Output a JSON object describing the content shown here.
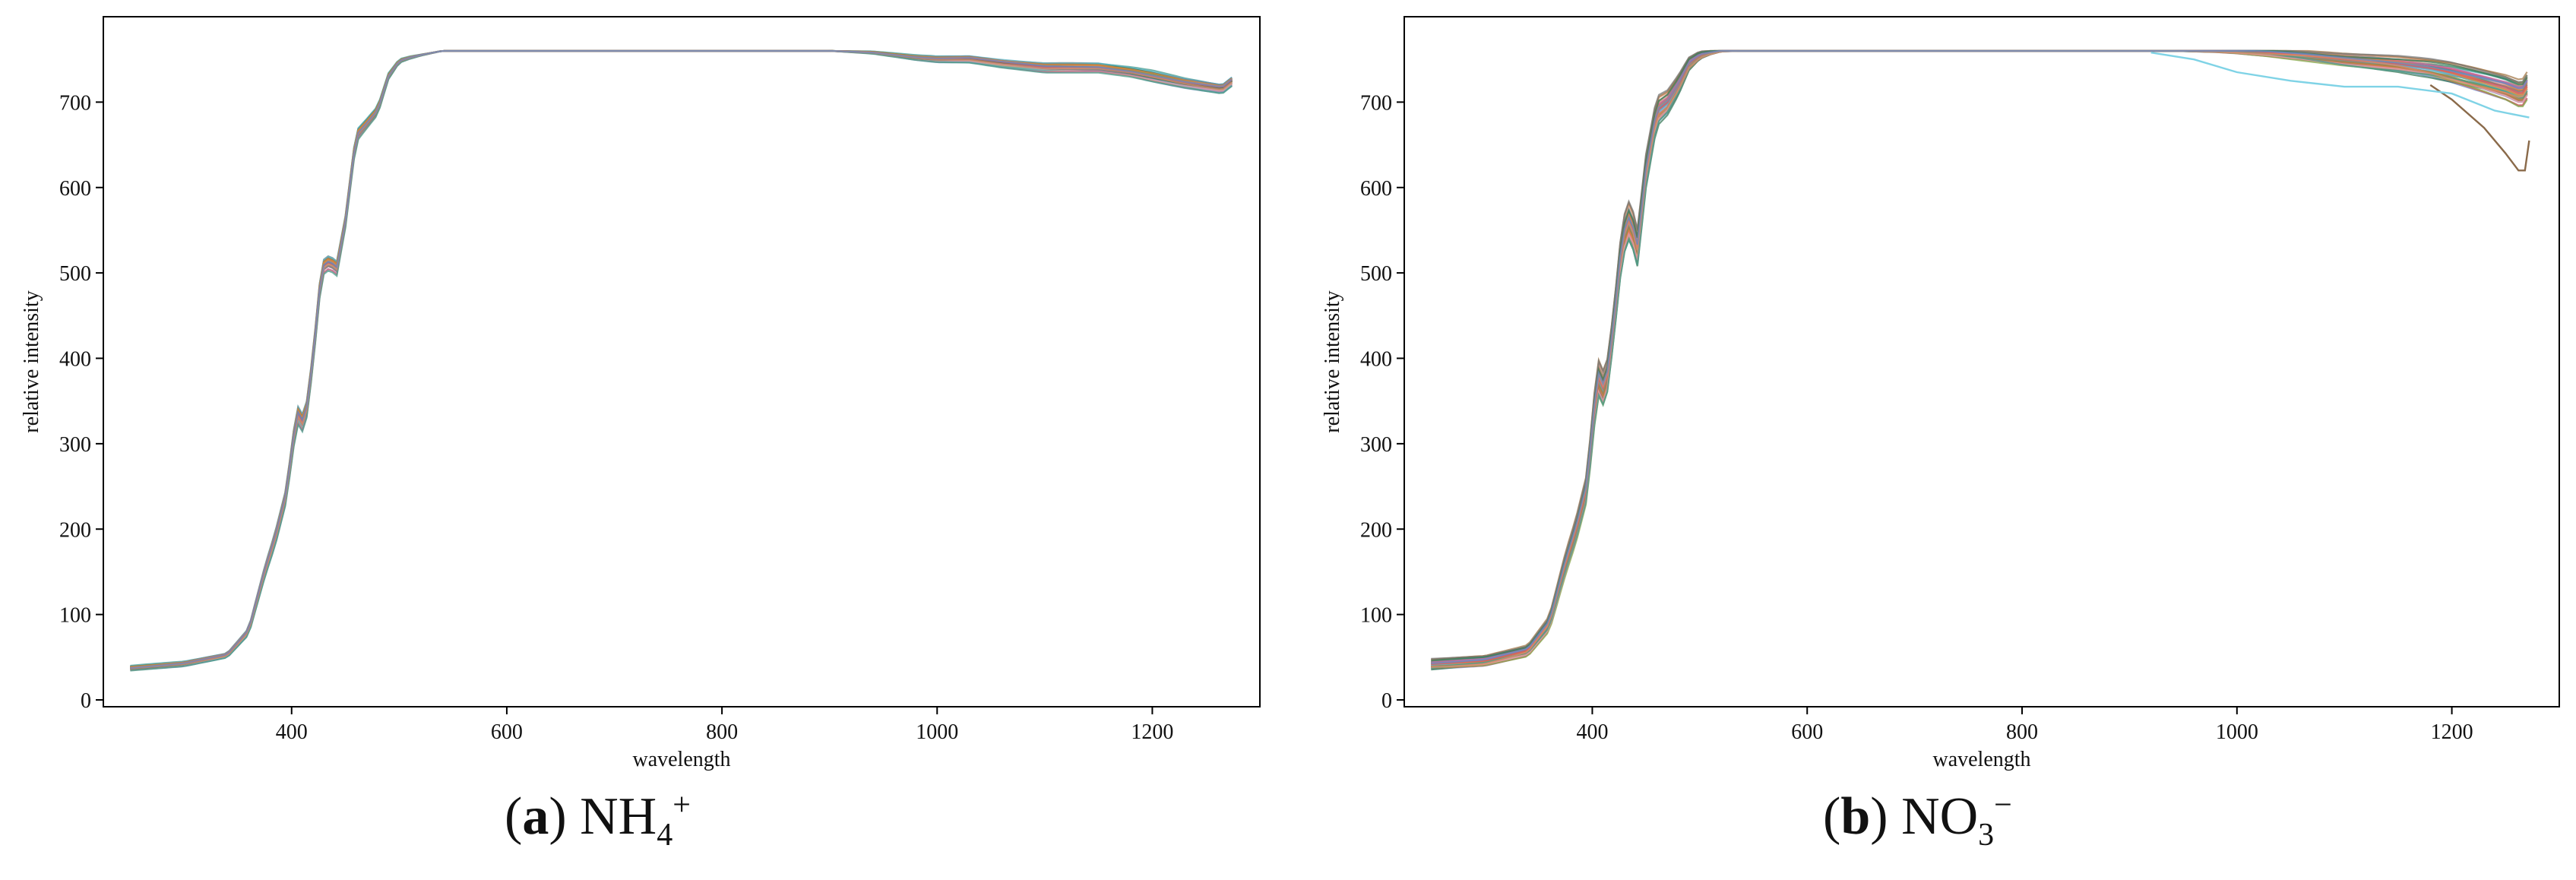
{
  "chart_data": [
    {
      "type": "line",
      "panel_id": "a",
      "xlabel": "wavelength",
      "ylabel": "relative intensity",
      "xlim": [
        225,
        1300
      ],
      "ylim": [
        -8,
        800
      ],
      "x_ticks": [
        400,
        600,
        800,
        1000,
        1200
      ],
      "y_ticks": [
        0,
        100,
        200,
        300,
        400,
        500,
        600,
        700
      ],
      "grid": false,
      "legend": "none",
      "series_count": 40,
      "x": [
        250,
        300,
        340,
        360,
        375,
        385,
        395,
        405,
        412,
        420,
        428,
        435,
        442,
        450,
        460,
        470,
        480,
        490,
        500,
        510,
        520,
        540,
        560,
        600,
        700,
        800,
        900,
        940,
        980,
        1000,
        1030,
        1060,
        1100,
        1150,
        1180,
        1200,
        1230,
        1250,
        1265,
        1275
      ],
      "mean_values": [
        37,
        42,
        52,
        80,
        150,
        190,
        240,
        335,
        320,
        400,
        505,
        512,
        505,
        560,
        660,
        675,
        690,
        730,
        748,
        752,
        755,
        760,
        760,
        760,
        760,
        760,
        760,
        758,
        752,
        750,
        750,
        745,
        740,
        740,
        735,
        730,
        722,
        718,
        715,
        725
      ],
      "spread": [
        4,
        4,
        4,
        6,
        10,
        12,
        12,
        15,
        14,
        12,
        12,
        12,
        12,
        10,
        10,
        8,
        7,
        5,
        3,
        2,
        1,
        0,
        0,
        0,
        0,
        0,
        0,
        2,
        4,
        5,
        6,
        7,
        8,
        8,
        8,
        9,
        8,
        8,
        8,
        8
      ],
      "colors": [
        "#e05a5a",
        "#4a9a8a",
        "#d98b6a",
        "#6a8bc4",
        "#c46aa4",
        "#8aa84a",
        "#5ab4c4",
        "#a47a4a",
        "#d4a0b0",
        "#7a7a7a",
        "#e08a3a",
        "#3a7a5a"
      ]
    },
    {
      "type": "line",
      "panel_id": "b",
      "xlabel": "wavelength",
      "ylabel": "relative intensity",
      "xlim": [
        225,
        1300
      ],
      "ylim": [
        -8,
        800
      ],
      "x_ticks": [
        400,
        600,
        800,
        1000,
        1200
      ],
      "y_ticks": [
        0,
        100,
        200,
        300,
        400,
        500,
        600,
        700
      ],
      "grid": false,
      "legend": "none",
      "series_count": 40,
      "x": [
        250,
        300,
        340,
        360,
        375,
        385,
        395,
        405,
        412,
        420,
        428,
        435,
        442,
        450,
        460,
        470,
        480,
        490,
        500,
        510,
        520,
        540,
        560,
        600,
        700,
        800,
        900,
        940,
        980,
        1000,
        1030,
        1060,
        1100,
        1150,
        1180,
        1200,
        1230,
        1250,
        1265,
        1270
      ],
      "mean_values": [
        42,
        46,
        58,
        90,
        160,
        200,
        250,
        380,
        360,
        440,
        540,
        565,
        530,
        620,
        690,
        700,
        720,
        745,
        755,
        758,
        760,
        760,
        760,
        760,
        760,
        760,
        760,
        760,
        760,
        760,
        758,
        755,
        750,
        745,
        740,
        735,
        725,
        718,
        710,
        720
      ],
      "spread": [
        8,
        8,
        9,
        12,
        18,
        20,
        22,
        30,
        28,
        25,
        30,
        30,
        28,
        25,
        22,
        18,
        15,
        10,
        6,
        3,
        1,
        0,
        0,
        0,
        0,
        0,
        0,
        0,
        2,
        4,
        6,
        8,
        10,
        12,
        14,
        16,
        18,
        20,
        22,
        22
      ],
      "outliers": [
        {
          "color": "#8a6a4a",
          "x": [
            1180,
            1200,
            1230,
            1250,
            1262,
            1268,
            1272
          ],
          "values": [
            720,
            703,
            670,
            640,
            620,
            620,
            655
          ]
        },
        {
          "color": "#7fd3e6",
          "x": [
            920,
            960,
            1000,
            1050,
            1100,
            1150,
            1200,
            1240,
            1272
          ],
          "values": [
            758,
            750,
            735,
            725,
            718,
            718,
            710,
            690,
            682
          ]
        }
      ],
      "colors": [
        "#e05a5a",
        "#4a9a8a",
        "#d98b6a",
        "#6a8bc4",
        "#c46aa4",
        "#8aa84a",
        "#5ab4c4",
        "#a47a4a",
        "#f0a0a8",
        "#7a7a7a",
        "#e08a3a",
        "#3a7a5a"
      ]
    }
  ],
  "captions": [
    {
      "paren_open": "(",
      "letter": "a",
      "paren_close": ")",
      "text": " NH",
      "sub": "4",
      "sup": "+"
    },
    {
      "paren_open": "(",
      "letter": "b",
      "paren_close": ")",
      "text": " NO",
      "sub": "3",
      "sup": "−"
    }
  ]
}
